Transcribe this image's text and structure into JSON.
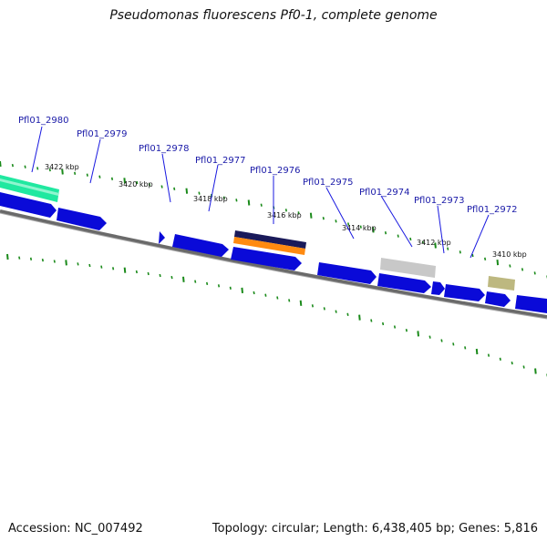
{
  "title": "Pseudomonas fluorescens Pf0-1, complete genome",
  "footer": {
    "accession": "Accession: NC_007492",
    "summary": "Topology: circular; Length: 6,438,405 bp; Genes: 5,816"
  },
  "colors": {
    "cds": "#0a0ad8",
    "backbone": "#7a7a7a",
    "tick": "#1a8a1a",
    "locus_label": "#1a1aa8",
    "leader_line": "#1a1ae0"
  },
  "kbp_labels": [
    "3422 kbp",
    "3420 kbp",
    "3418 kbp",
    "3416 kbp",
    "3414 kbp",
    "3412 kbp",
    "3410 kbp"
  ],
  "locus_labels": [
    "Pfl01_2980",
    "Pfl01_2979",
    "Pfl01_2978",
    "Pfl01_2977",
    "Pfl01_2976",
    "Pfl01_2975",
    "Pfl01_2974",
    "Pfl01_2973",
    "Pfl01_2972"
  ],
  "feature_colors": [
    "#20e8a0",
    "#1a1a5a",
    "#ff8a10",
    "#c8c8c8",
    "#bdb880"
  ]
}
